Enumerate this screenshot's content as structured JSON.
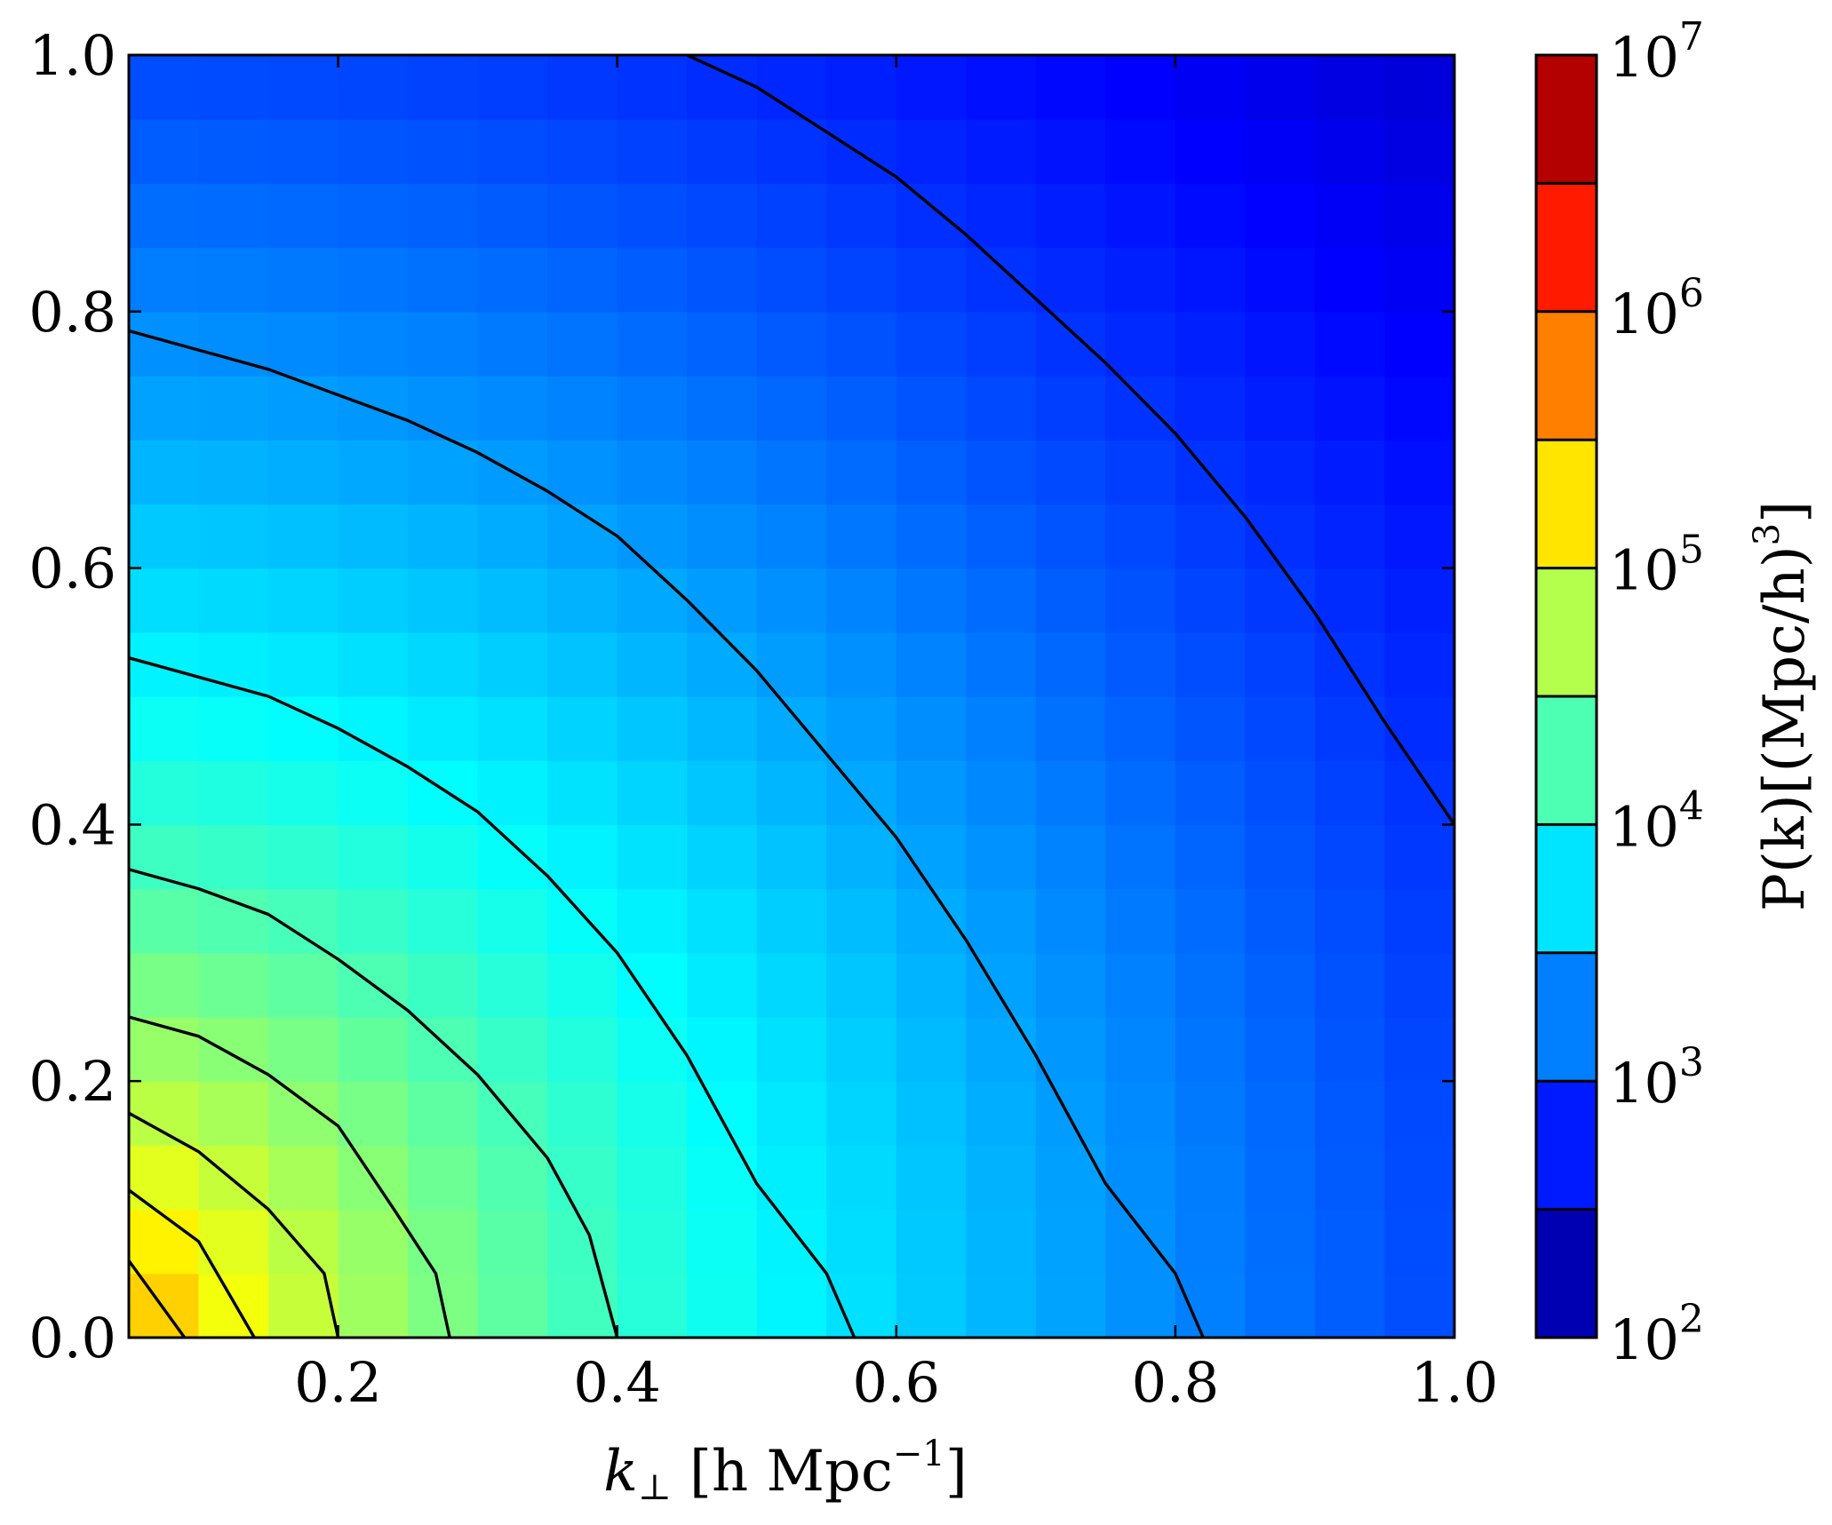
{
  "chart_data": {
    "type": "heatmap",
    "title": "",
    "xlabel": "k⊥ [h Mpc−1]",
    "xlabel_parts": {
      "base": "k",
      "sub": "⊥",
      "rest": " [h Mpc",
      "sup": "−1",
      "close": "]"
    },
    "ylabel": "",
    "xlim": [
      0.05,
      1.0
    ],
    "ylim": [
      0.0,
      1.0
    ],
    "x_ticks": [
      0.2,
      0.4,
      0.6,
      0.8,
      1.0
    ],
    "x_tick_labels": [
      "0.2",
      "0.4",
      "0.6",
      "0.8",
      "1.0"
    ],
    "y_ticks": [
      0.0,
      0.2,
      0.4,
      0.6,
      0.8,
      1.0
    ],
    "y_tick_labels": [
      "0.0",
      "0.2",
      "0.4",
      "0.6",
      "0.8",
      "1.0"
    ],
    "grid_cells": {
      "nx": 19,
      "ny": 20,
      "x_start": 0.05,
      "x_step": 0.05,
      "y_start": 0.0,
      "y_step": 0.05
    },
    "field_model": {
      "log10_P_at_origin": 6.6,
      "log10_P_at_far_corner": 2.4
    },
    "colormap": "jet",
    "colorbar": {
      "label": "P(k)[(Mpc/h)3]",
      "label_text": "P(k)[(Mpc/h)",
      "label_sup": "3",
      "label_close": "]",
      "scale": "log",
      "range": [
        100,
        10000000
      ],
      "tick_exponents": [
        2,
        3,
        4,
        5,
        6,
        7
      ],
      "tick_base": "10",
      "contour_levels_log10": [
        2.5,
        3.0,
        3.5,
        4.0,
        4.5,
        5.0,
        5.5,
        6.0,
        6.5
      ],
      "placement": "right"
    },
    "contours": [
      {
        "name": "c1",
        "points": [
          [
            0.05,
            0.06
          ],
          [
            0.09,
            0.0
          ]
        ]
      },
      {
        "name": "c2",
        "points": [
          [
            0.05,
            0.115
          ],
          [
            0.1,
            0.075
          ],
          [
            0.14,
            0.0
          ]
        ]
      },
      {
        "name": "c3",
        "points": [
          [
            0.05,
            0.175
          ],
          [
            0.1,
            0.145
          ],
          [
            0.15,
            0.1
          ],
          [
            0.19,
            0.05
          ],
          [
            0.2,
            0.0
          ]
        ]
      },
      {
        "name": "c4",
        "points": [
          [
            0.05,
            0.25
          ],
          [
            0.1,
            0.235
          ],
          [
            0.15,
            0.205
          ],
          [
            0.2,
            0.165
          ],
          [
            0.24,
            0.1
          ],
          [
            0.27,
            0.05
          ],
          [
            0.28,
            0.0
          ]
        ]
      },
      {
        "name": "c5",
        "points": [
          [
            0.05,
            0.365
          ],
          [
            0.1,
            0.35
          ],
          [
            0.15,
            0.33
          ],
          [
            0.2,
            0.295
          ],
          [
            0.25,
            0.255
          ],
          [
            0.3,
            0.205
          ],
          [
            0.35,
            0.14
          ],
          [
            0.38,
            0.08
          ],
          [
            0.4,
            0.0
          ]
        ]
      },
      {
        "name": "c6",
        "points": [
          [
            0.05,
            0.53
          ],
          [
            0.1,
            0.515
          ],
          [
            0.15,
            0.5
          ],
          [
            0.2,
            0.475
          ],
          [
            0.25,
            0.445
          ],
          [
            0.3,
            0.41
          ],
          [
            0.35,
            0.36
          ],
          [
            0.4,
            0.3
          ],
          [
            0.45,
            0.22
          ],
          [
            0.5,
            0.12
          ],
          [
            0.55,
            0.05
          ],
          [
            0.57,
            0.0
          ]
        ]
      },
      {
        "name": "c7",
        "points": [
          [
            0.05,
            0.785
          ],
          [
            0.1,
            0.77
          ],
          [
            0.15,
            0.755
          ],
          [
            0.2,
            0.735
          ],
          [
            0.25,
            0.715
          ],
          [
            0.3,
            0.69
          ],
          [
            0.35,
            0.66
          ],
          [
            0.4,
            0.625
          ],
          [
            0.45,
            0.575
          ],
          [
            0.5,
            0.52
          ],
          [
            0.55,
            0.455
          ],
          [
            0.6,
            0.39
          ],
          [
            0.65,
            0.31
          ],
          [
            0.7,
            0.22
          ],
          [
            0.75,
            0.12
          ],
          [
            0.8,
            0.05
          ],
          [
            0.82,
            0.0
          ]
        ]
      },
      {
        "name": "c8",
        "points": [
          [
            0.45,
            1.0
          ],
          [
            0.5,
            0.975
          ],
          [
            0.55,
            0.94
          ],
          [
            0.6,
            0.905
          ],
          [
            0.65,
            0.86
          ],
          [
            0.7,
            0.81
          ],
          [
            0.75,
            0.76
          ],
          [
            0.8,
            0.705
          ],
          [
            0.85,
            0.64
          ],
          [
            0.9,
            0.565
          ],
          [
            0.95,
            0.48
          ],
          [
            1.0,
            0.4
          ]
        ]
      }
    ]
  }
}
